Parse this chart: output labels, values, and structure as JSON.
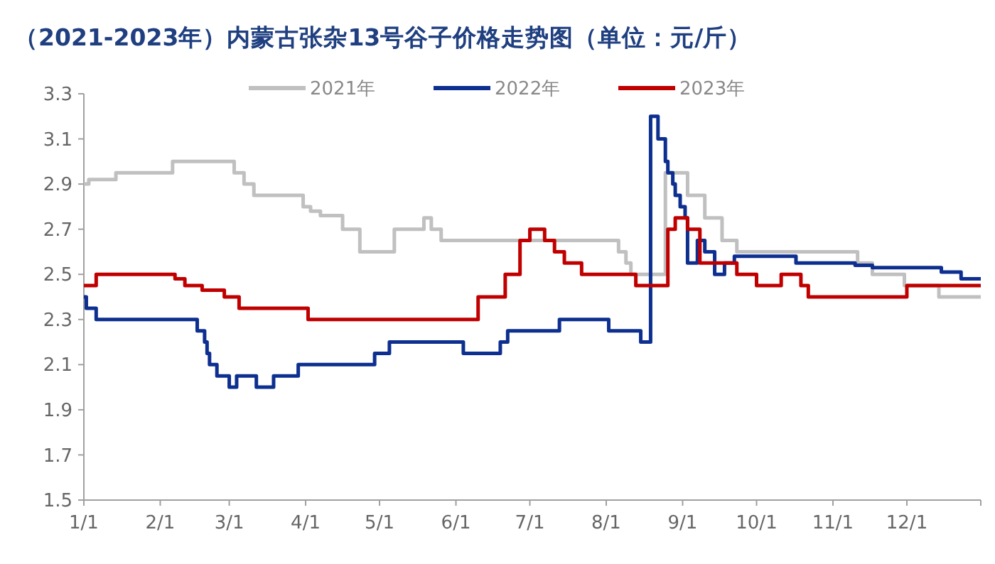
{
  "chart_data": {
    "type": "step",
    "title": "（2021-2023年）内蒙古张杂13号谷子价格走势图（单位：元/斤）",
    "legend": "top",
    "grid": false,
    "xlim": [
      "--01-01",
      "--12-31"
    ],
    "xticks": [
      {
        "value": "--01-01",
        "label": "1/1"
      },
      {
        "value": "--02-01",
        "label": "2/1"
      },
      {
        "value": "--03-01",
        "label": "3/1"
      },
      {
        "value": "--04-01",
        "label": "4/1"
      },
      {
        "value": "--05-01",
        "label": "5/1"
      },
      {
        "value": "--06-01",
        "label": "6/1"
      },
      {
        "value": "--07-01",
        "label": "7/1"
      },
      {
        "value": "--08-01",
        "label": "8/1"
      },
      {
        "value": "--09-01",
        "label": "9/1"
      },
      {
        "value": "--10-01",
        "label": "10/1"
      },
      {
        "value": "--11-01",
        "label": "11/1"
      },
      {
        "value": "--12-01",
        "label": "12/1"
      }
    ],
    "ylim": [
      1.5,
      3.3
    ],
    "yticks": [
      1.5,
      1.7,
      1.9,
      2.1,
      2.3,
      2.5,
      2.7,
      2.9,
      3.1,
      3.3
    ],
    "series": [
      {
        "name": "2021年",
        "color": "#c0c0c0",
        "x": [
          "--01-01",
          "--01-03",
          "--01-14",
          "--02-06",
          "--03-03",
          "--03-07",
          "--03-11",
          "--03-31",
          "--04-03",
          "--04-07",
          "--04-16",
          "--04-23",
          "--05-07",
          "--05-19",
          "--05-22",
          "--05-26",
          "--08-06",
          "--08-09",
          "--08-11",
          "--08-25",
          "--09-03",
          "--09-10",
          "--09-17",
          "--09-23",
          "--11-11",
          "--11-17",
          "--11-30",
          "--12-14",
          "--12-31"
        ],
        "values": [
          2.9,
          2.92,
          2.95,
          3.0,
          2.95,
          2.9,
          2.85,
          2.8,
          2.78,
          2.76,
          2.7,
          2.6,
          2.7,
          2.75,
          2.7,
          2.65,
          2.6,
          2.55,
          2.5,
          2.95,
          2.85,
          2.75,
          2.65,
          2.6,
          2.55,
          2.5,
          2.45,
          2.4,
          2.4
        ]
      },
      {
        "name": "2022年",
        "color": "#0d2f8f",
        "x": [
          "--01-01",
          "--01-02",
          "--01-06",
          "--02-16",
          "--02-19",
          "--02-20",
          "--02-21",
          "--02-24",
          "--03-01",
          "--03-04",
          "--03-12",
          "--03-19",
          "--03-29",
          "--04-29",
          "--05-05",
          "--06-04",
          "--06-19",
          "--06-22",
          "--07-13",
          "--08-02",
          "--08-15",
          "--08-19",
          "--08-22",
          "--08-25",
          "--08-26",
          "--08-28",
          "--08-29",
          "--08-31",
          "--09-02",
          "--09-03",
          "--09-07",
          "--09-10",
          "--09-14",
          "--09-18",
          "--09-22",
          "--10-17",
          "--11-10",
          "--11-17",
          "--12-15",
          "--12-23",
          "--12-31"
        ],
        "values": [
          2.4,
          2.35,
          2.3,
          2.25,
          2.2,
          2.15,
          2.1,
          2.05,
          2.0,
          2.05,
          2.0,
          2.05,
          2.1,
          2.15,
          2.2,
          2.15,
          2.2,
          2.25,
          2.3,
          2.25,
          2.2,
          3.2,
          3.1,
          3.0,
          2.95,
          2.9,
          2.85,
          2.8,
          2.75,
          2.55,
          2.65,
          2.6,
          2.5,
          2.55,
          2.58,
          2.55,
          2.54,
          2.53,
          2.51,
          2.48,
          2.48
        ]
      },
      {
        "name": "2023年",
        "color": "#c00000",
        "x": [
          "--01-01",
          "--01-06",
          "--02-07",
          "--02-11",
          "--02-18",
          "--02-27",
          "--03-05",
          "--04-02",
          "--06-10",
          "--06-21",
          "--06-27",
          "--07-01",
          "--07-07",
          "--07-11",
          "--07-15",
          "--07-22",
          "--08-13",
          "--08-26",
          "--08-29",
          "--09-03",
          "--09-08",
          "--09-23",
          "--10-01",
          "--10-11",
          "--10-19",
          "--10-22",
          "--12-01",
          "--12-31"
        ],
        "values": [
          2.45,
          2.5,
          2.48,
          2.45,
          2.43,
          2.4,
          2.35,
          2.3,
          2.4,
          2.5,
          2.65,
          2.7,
          2.65,
          2.6,
          2.55,
          2.5,
          2.45,
          2.7,
          2.75,
          2.7,
          2.55,
          2.5,
          2.45,
          2.5,
          2.45,
          2.4,
          2.45,
          2.45
        ]
      }
    ]
  }
}
